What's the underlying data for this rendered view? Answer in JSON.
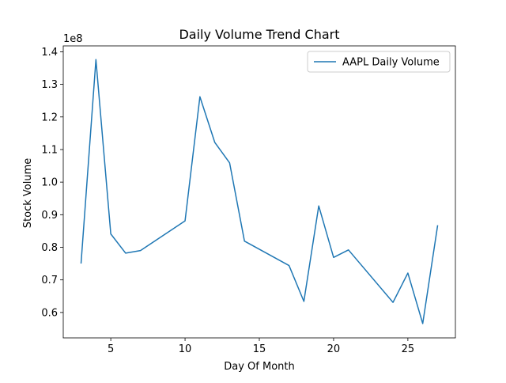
{
  "chart_data": {
    "type": "line",
    "title": "Daily Volume Trend Chart",
    "xlabel": "Day Of Month",
    "ylabel": "Stock Volume",
    "y_offset_label": "1e8",
    "xlim": [
      1.8,
      28.2
    ],
    "ylim": [
      0.522,
      1.418
    ],
    "x_ticks": [
      5,
      10,
      15,
      20,
      25
    ],
    "y_ticks": [
      0.6,
      0.7,
      0.8,
      0.9,
      1.0,
      1.1,
      1.2,
      1.3,
      1.4
    ],
    "y_tick_labels": [
      "0.6",
      "0.7",
      "0.8",
      "0.9",
      "1.0",
      "1.1",
      "1.2",
      "1.3",
      "1.4"
    ],
    "grid": false,
    "legend": {
      "position": "top-right"
    },
    "series": [
      {
        "name": "AAPL Daily Volume",
        "color": "#1f77b4",
        "x": [
          3,
          4,
          5,
          6,
          7,
          10,
          11,
          12,
          13,
          14,
          17,
          18,
          19,
          20,
          21,
          24,
          25,
          26,
          27
        ],
        "y": [
          0.752,
          1.376,
          0.841,
          0.782,
          0.79,
          0.881,
          1.262,
          1.122,
          1.059,
          0.819,
          0.744,
          0.634,
          0.927,
          0.769,
          0.792,
          0.631,
          0.721,
          0.566,
          0.866
        ]
      }
    ]
  }
}
